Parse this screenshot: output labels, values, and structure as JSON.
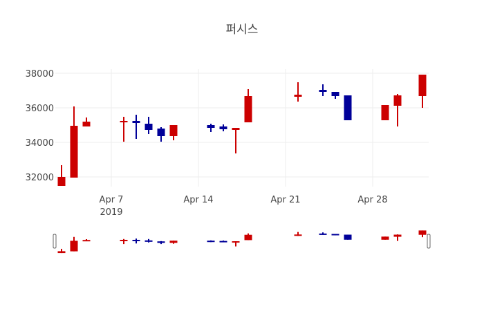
{
  "chart_data": {
    "type": "candlestick",
    "title": "퍼시스",
    "xlabel": "",
    "ylabel": "",
    "ylim": [
      31300,
      38400
    ],
    "y_ticks": [
      32000,
      34000,
      36000,
      38000
    ],
    "x_ticks": [
      "Apr 7\n2019",
      "Apr 14",
      "Apr 21",
      "Apr 28"
    ],
    "increasing_color": "#cc0000",
    "decreasing_color": "#000099",
    "grid": true,
    "rangeslider": true,
    "candles": [
      {
        "date": "2019-04-03",
        "open": 31480,
        "high": 32680,
        "low": 31480,
        "close": 32000
      },
      {
        "date": "2019-04-04",
        "open": 31960,
        "high": 36080,
        "low": 31960,
        "close": 34960
      },
      {
        "date": "2019-04-05",
        "open": 34920,
        "high": 35440,
        "low": 34920,
        "close": 35200
      },
      {
        "date": "2019-04-08",
        "open": 35160,
        "high": 35480,
        "low": 34040,
        "close": 35240
      },
      {
        "date": "2019-04-09",
        "open": 35240,
        "high": 35600,
        "low": 34200,
        "close": 35120
      },
      {
        "date": "2019-04-10",
        "open": 35080,
        "high": 35480,
        "low": 34480,
        "close": 34720
      },
      {
        "date": "2019-04-11",
        "open": 34800,
        "high": 34880,
        "low": 34040,
        "close": 34360
      },
      {
        "date": "2019-04-12",
        "open": 34360,
        "high": 35000,
        "low": 34120,
        "close": 35000
      },
      {
        "date": "2019-04-15",
        "open": 35000,
        "high": 35080,
        "low": 34600,
        "close": 34840
      },
      {
        "date": "2019-04-16",
        "open": 34920,
        "high": 35040,
        "low": 34640,
        "close": 34760
      },
      {
        "date": "2019-04-17",
        "open": 34720,
        "high": 34840,
        "low": 33360,
        "close": 34840
      },
      {
        "date": "2019-04-18",
        "open": 35160,
        "high": 37080,
        "low": 35160,
        "close": 36680
      },
      {
        "date": "2019-04-22",
        "open": 36640,
        "high": 37480,
        "low": 36360,
        "close": 36760
      },
      {
        "date": "2019-04-24",
        "open": 37040,
        "high": 37360,
        "low": 36680,
        "close": 36920
      },
      {
        "date": "2019-04-25",
        "open": 36920,
        "high": 36920,
        "low": 36520,
        "close": 36680
      },
      {
        "date": "2019-04-26",
        "open": 36720,
        "high": 36720,
        "low": 35280,
        "close": 35280
      },
      {
        "date": "2019-04-29",
        "open": 35280,
        "high": 36160,
        "low": 35280,
        "close": 36160
      },
      {
        "date": "2019-04-30",
        "open": 36120,
        "high": 36800,
        "low": 34920,
        "close": 36720
      },
      {
        "date": "2019-05-02",
        "open": 36680,
        "high": 37920,
        "low": 36000,
        "close": 37920
      }
    ]
  }
}
